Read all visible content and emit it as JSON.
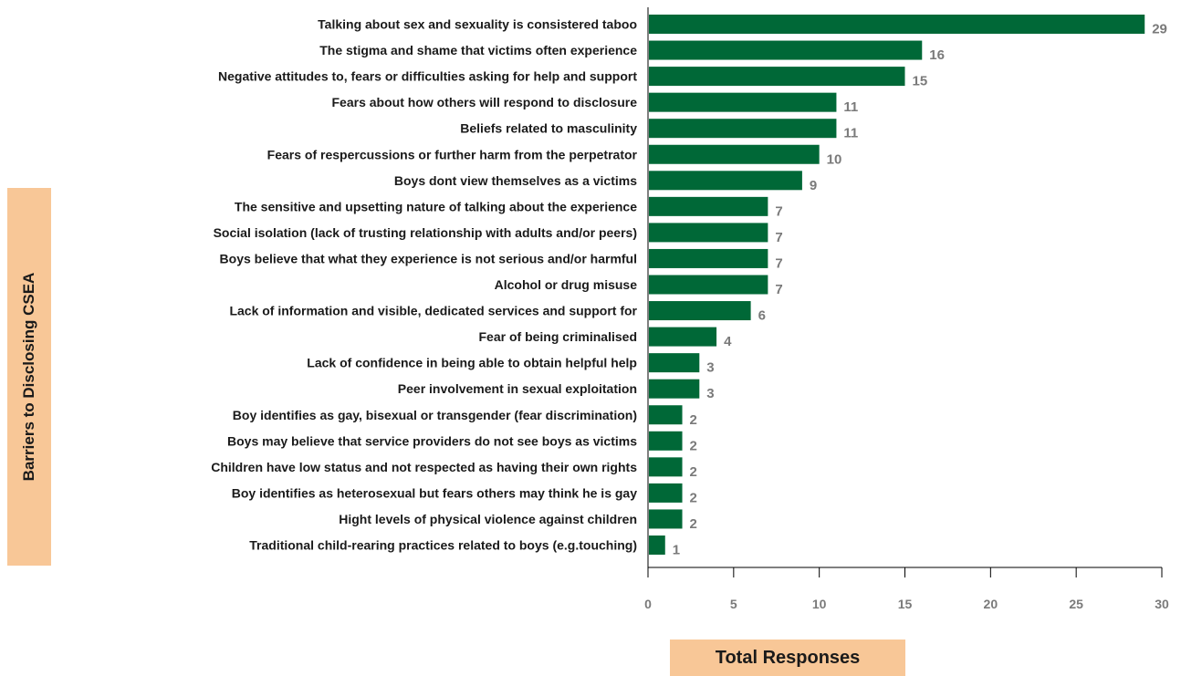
{
  "chart_data": {
    "type": "bar",
    "orientation": "horizontal",
    "title": "",
    "xlabel": "Total Responses",
    "ylabel": "Barriers to Disclosing CSEA",
    "xlim": [
      0,
      30
    ],
    "ticks": [
      "0",
      "5",
      "10",
      "15",
      "20",
      "25",
      "30"
    ],
    "bar_color": "#006837",
    "grid": false,
    "categories": [
      "Talking about sex and sexuality is consistered taboo",
      "The stigma and shame that victims often experience",
      "Negative attitudes to, fears or difficulties asking for help and support",
      "Fears about how others will respond to disclosure",
      "Beliefs related to masculinity",
      "Fears of respercussions or further harm from the perpetrator",
      "Boys dont view themselves as a victims",
      "The sensitive and upsetting nature of talking about the experience",
      "Social isolation (lack of trusting relationship with adults and/or peers)",
      "Boys believe that what they experience is not serious and/or harmful",
      "Alcohol or drug misuse",
      "Lack of information and visible, dedicated services and support for",
      "Fear of being criminalised",
      "Lack of confidence in being able to obtain helpful help",
      "Peer involvement in sexual exploitation",
      "Boy identifies as gay, bisexual or transgender (fear discrimination)",
      "Boys may believe that service providers do not see boys as victims",
      "Children have low status and not respected as having their own rights",
      "Boy identifies as heterosexual but fears others may think he is gay",
      "Hight levels of physical violence against children",
      "Traditional child-rearing practices related to boys (e.g.touching)"
    ],
    "values": [
      29,
      16,
      15,
      11,
      11,
      10,
      9,
      7,
      7,
      7,
      7,
      6,
      4,
      3,
      3,
      2,
      2,
      2,
      2,
      2,
      1
    ]
  }
}
